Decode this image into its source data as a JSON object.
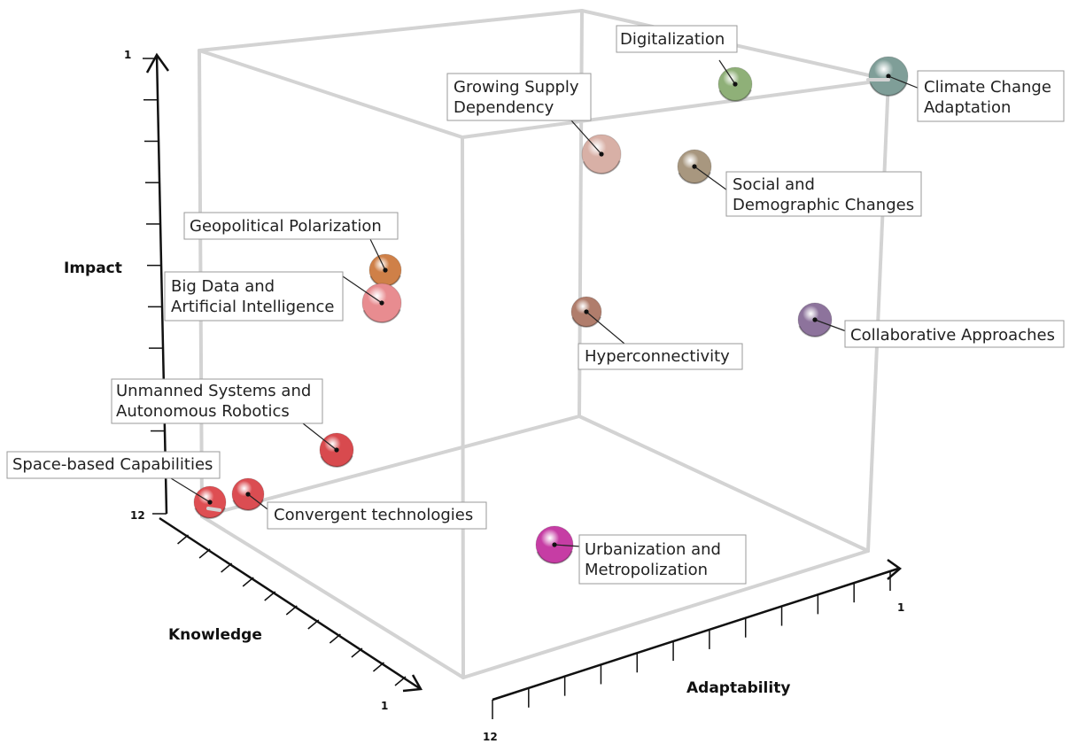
{
  "chart_data": {
    "type": "scatter",
    "title": "",
    "axes": {
      "impact": {
        "label": "Impact",
        "tick_labels": [
          "1",
          "12"
        ]
      },
      "knowledge": {
        "label": "Knowledge",
        "tick_labels": [
          "12",
          "1"
        ]
      },
      "adaptability": {
        "label": "Adaptability",
        "tick_labels": [
          "12",
          "1"
        ]
      }
    },
    "points": [
      {
        "label": "Digitalization",
        "color": "#8fb078"
      },
      {
        "label": "Climate Change Adaptation",
        "color": "#7f9e98"
      },
      {
        "label": "Growing Supply Dependency",
        "color": "#d8b0a6"
      },
      {
        "label": "Social and Demographic Changes",
        "color": "#a8977f"
      },
      {
        "label": "Geopolitical Polarization",
        "color": "#cf8048"
      },
      {
        "label": "Big Data and Artificial Intelligence",
        "color": "#e88c90"
      },
      {
        "label": "Hyperconnectivity",
        "color": "#b07d6c"
      },
      {
        "label": "Collaborative Approaches",
        "color": "#8d739c"
      },
      {
        "label": "Unmanned Systems and Autonomous Robotics",
        "color": "#d84a4e"
      },
      {
        "label": "Space-based Capabilities",
        "color": "#de4e52"
      },
      {
        "label": "Convergent technologies",
        "color": "#db4d52"
      },
      {
        "label": "Urbanization and Metropolization",
        "color": "#c63da4"
      }
    ]
  }
}
